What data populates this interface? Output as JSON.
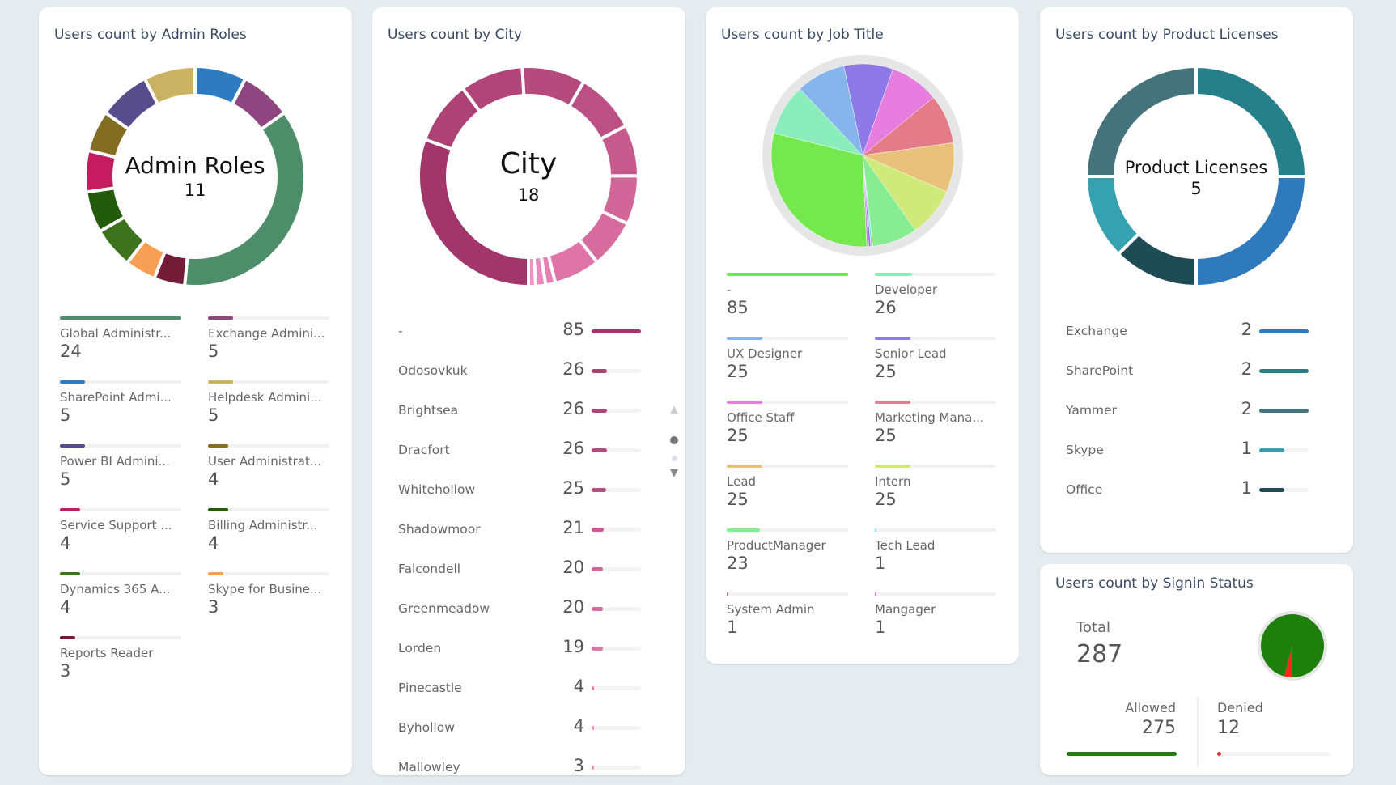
{
  "admin_roles": {
    "title": "Users count by Admin Roles",
    "center_label": "Admin Roles",
    "center_count": "11",
    "items": [
      {
        "label": "Global Administr...",
        "value": 24,
        "color": "#4e8d6a"
      },
      {
        "label": "Exchange Admini...",
        "value": 5,
        "color": "#8e4580"
      },
      {
        "label": "SharePoint Admi...",
        "value": 5,
        "color": "#2f7bbf"
      },
      {
        "label": "Helpdesk Admini...",
        "value": 5,
        "color": "#c9b264"
      },
      {
        "label": "Power BI Admini...",
        "value": 5,
        "color": "#574d8c"
      },
      {
        "label": "User Administrat...",
        "value": 4,
        "color": "#836d22"
      },
      {
        "label": "Service Support ...",
        "value": 4,
        "color": "#c51b5f"
      },
      {
        "label": "Billing Administr...",
        "value": 4,
        "color": "#245a0c"
      },
      {
        "label": "Dynamics 365 A...",
        "value": 4,
        "color": "#3c731c"
      },
      {
        "label": "Skype for Busine...",
        "value": 3,
        "color": "#f79f55"
      },
      {
        "label": "Reports Reader",
        "value": 3,
        "color": "#721c37"
      }
    ]
  },
  "city": {
    "title": "Users count by City",
    "center_label": "City",
    "center_count": "18",
    "items": [
      {
        "label": "-",
        "value": 85,
        "color": "#a2366a"
      },
      {
        "label": "Odosovkuk",
        "value": 26,
        "color": "#ad4274"
      },
      {
        "label": "Brightsea",
        "value": 26,
        "color": "#b1457a"
      },
      {
        "label": "Dracfort",
        "value": 26,
        "color": "#b54a7d"
      },
      {
        "label": "Whitehollow",
        "value": 25,
        "color": "#bb5084"
      },
      {
        "label": "Shadowmoor",
        "value": 21,
        "color": "#c65a8d"
      },
      {
        "label": "Falcondell",
        "value": 20,
        "color": "#d26699"
      },
      {
        "label": "Greenmeadow",
        "value": 20,
        "color": "#d66c9e"
      },
      {
        "label": "Lorden",
        "value": 19,
        "color": "#de74a7"
      },
      {
        "label": "Pinecastle",
        "value": 4,
        "color": "#e57fb4"
      },
      {
        "label": "Byhollow",
        "value": 4,
        "color": "#ec88bd"
      },
      {
        "label": "Mallowley",
        "value": 3,
        "color": "#f192c4"
      }
    ],
    "scroll": {
      "up": "▲",
      "down": "▼"
    }
  },
  "job_title": {
    "title": "Users count by Job Title",
    "items": [
      {
        "label": "-",
        "value": 85,
        "color": "#75e74f"
      },
      {
        "label": "Developer",
        "value": 26,
        "color": "#8aedbb"
      },
      {
        "label": "UX Designer",
        "value": 25,
        "color": "#85b5ea"
      },
      {
        "label": "Senior Lead",
        "value": 25,
        "color": "#8d79e8"
      },
      {
        "label": "Office Staff",
        "value": 25,
        "color": "#e77ddf"
      },
      {
        "label": "Marketing Mana...",
        "value": 25,
        "color": "#e47b88"
      },
      {
        "label": "Lead",
        "value": 25,
        "color": "#e8c27b"
      },
      {
        "label": "Intern",
        "value": 25,
        "color": "#cfe97b"
      },
      {
        "label": "ProductManager",
        "value": 23,
        "color": "#88ec92"
      },
      {
        "label": "Tech Lead",
        "value": 1,
        "color": "#7be8e5"
      },
      {
        "label": "System Admin",
        "value": 1,
        "color": "#9b6cf0"
      },
      {
        "label": "Mangager",
        "value": 1,
        "color": "#d17be0"
      }
    ]
  },
  "product_licenses": {
    "title": "Users count by Product Licenses",
    "center_label": "Product Licenses",
    "center_count": "5",
    "items": [
      {
        "label": "Exchange",
        "value": 2,
        "color": "#2f79bd"
      },
      {
        "label": "SharePoint",
        "value": 2,
        "color": "#277f8a"
      },
      {
        "label": "Yammer",
        "value": 2,
        "color": "#44737c"
      },
      {
        "label": "Skype",
        "value": 1,
        "color": "#35a1b1"
      },
      {
        "label": "Office",
        "value": 1,
        "color": "#1f4b55"
      }
    ]
  },
  "signin": {
    "title": "Users count by Signin Status",
    "total_label": "Total",
    "total": "287",
    "allowed_label": "Allowed",
    "allowed": 275,
    "allowed_color": "#1f7f0d",
    "denied_label": "Denied",
    "denied": 12,
    "denied_color": "#f22a1a"
  }
}
